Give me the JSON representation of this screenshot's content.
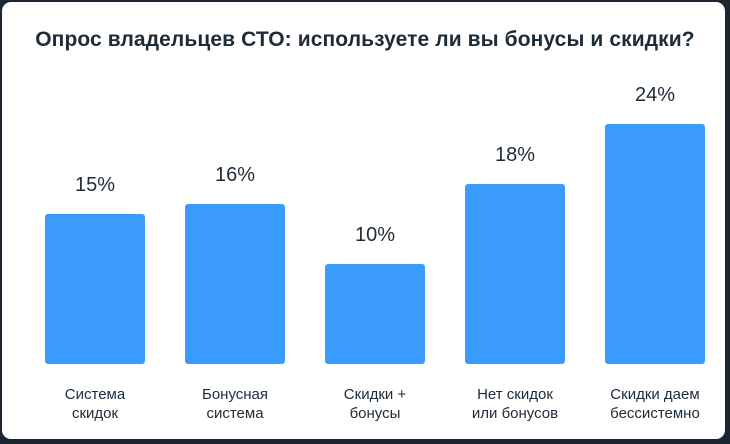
{
  "chart_data": {
    "type": "bar",
    "title": "Опрос владельцев СТО: используете ли вы бонусы и скидки?",
    "categories": [
      [
        "Система",
        "скидок"
      ],
      [
        "Бонусная",
        "система"
      ],
      [
        "Скидки +",
        "бонусы"
      ],
      [
        "Нет скидок",
        "или бонусов"
      ],
      [
        "Скидки даем",
        "бессистемно"
      ]
    ],
    "values": [
      15,
      16,
      10,
      18,
      24
    ],
    "value_labels": [
      "15%",
      "16%",
      "10%",
      "18%",
      "24%"
    ],
    "unit": "%",
    "ylim": [
      0,
      26
    ],
    "grid": false,
    "legend": "none",
    "bar_color": "#3a9bfd",
    "text_color": "#1e2b38"
  }
}
